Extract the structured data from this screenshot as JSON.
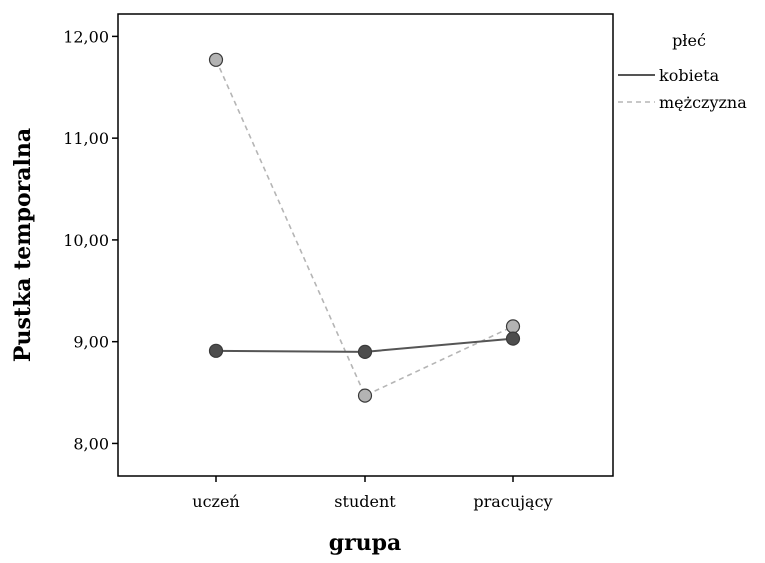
{
  "chart_data": {
    "type": "line",
    "title": "",
    "xlabel": "grupa",
    "ylabel": "Pustka temporalna",
    "categories": [
      "uczeń",
      "student",
      "pracujący"
    ],
    "ylim": [
      7.68,
      12.22
    ],
    "yticks": [
      8.0,
      9.0,
      10.0,
      11.0,
      12.0
    ],
    "ytick_labels": [
      "8,00",
      "9,00",
      "10,00",
      "11,00",
      "12,00"
    ],
    "grid": false,
    "legend": {
      "title": "płeć",
      "placement": "right"
    },
    "series": [
      {
        "name": "kobieta",
        "values": [
          8.91,
          8.9,
          9.03
        ],
        "color": "#555555",
        "marker_color": "#4d4d4d",
        "dashed": false
      },
      {
        "name": "mężczyzna",
        "values": [
          11.77,
          8.47,
          9.15
        ],
        "color": "#b5b5b5",
        "marker_color": "#b3b3b3",
        "dashed": true
      }
    ]
  }
}
